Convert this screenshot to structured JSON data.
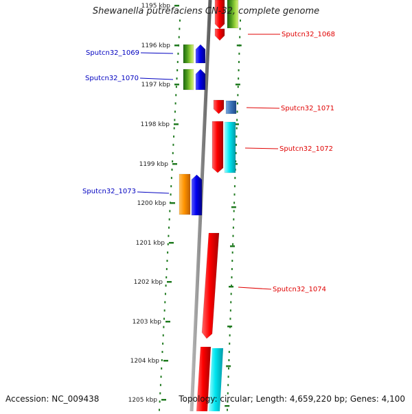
{
  "title": "Shewanella putrefaciens CN-32, complete genome",
  "footer": {
    "accession": "Accession: NC_009438",
    "topology": "Topology: circular; Length: 4,659,220 bp; Genes: 4,100"
  },
  "ruler": {
    "ticks": [
      "1195 kbp",
      "1196 kbp",
      "1197 kbp",
      "1198 kbp",
      "1199 kbp",
      "1200 kbp",
      "1201 kbp",
      "1202 kbp",
      "1203 kbp",
      "1204 kbp",
      "1205 kbp"
    ]
  },
  "genes": [
    {
      "name": "Sputcn32_1068",
      "strand": "forward",
      "color": "#e00000"
    },
    {
      "name": "Sputcn32_1069",
      "strand": "reverse",
      "color": "#0000c0"
    },
    {
      "name": "Sputcn32_1070",
      "strand": "reverse",
      "color": "#0000c0"
    },
    {
      "name": "Sputcn32_1071",
      "strand": "forward",
      "color": "#e00000"
    },
    {
      "name": "Sputcn32_1072",
      "strand": "forward",
      "color": "#e00000"
    },
    {
      "name": "Sputcn32_1073",
      "strand": "reverse",
      "color": "#0000c0"
    },
    {
      "name": "Sputcn32_1074",
      "strand": "forward",
      "color": "#e00000"
    }
  ],
  "colors": {
    "forward_label": "#e00000",
    "reverse_label": "#0000c0",
    "tick": "#1f7a1f",
    "backbone": "#8a8a8a"
  }
}
